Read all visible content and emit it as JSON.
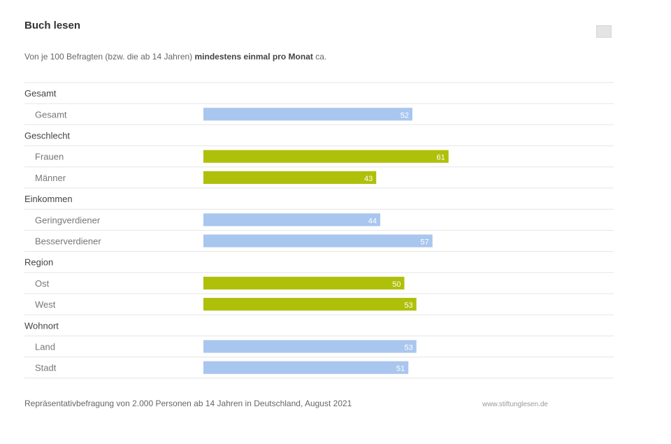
{
  "header": {
    "title": "Buch lesen",
    "subtitle_pre": "Von je 100 Befragten (bzw. die ab 14 Jahren) ",
    "subtitle_bold": "mindestens einmal pro Monat",
    "subtitle_post": " ca."
  },
  "footer": {
    "source": "Repräsentativbefragung von 2.000 Personen ab 14 Jahren in Deutschland, August 2021",
    "brand": "www.stiftunglesen.de"
  },
  "colors": {
    "blue": "#a9c6ef",
    "green": "#afc00a",
    "rule": "#e6e6e6"
  },
  "chart_data": {
    "type": "bar",
    "orientation": "horizontal",
    "xlim": [
      0,
      100
    ],
    "title": "Buch lesen",
    "groups": [
      {
        "label": "Gesamt",
        "rows": [
          {
            "label": "Gesamt",
            "value": 52,
            "color": "blue"
          }
        ]
      },
      {
        "label": "Geschlecht",
        "rows": [
          {
            "label": "Frauen",
            "value": 61,
            "color": "green"
          },
          {
            "label": "Männer",
            "value": 43,
            "color": "green"
          }
        ]
      },
      {
        "label": "Einkommen",
        "rows": [
          {
            "label": "Geringverdiener",
            "value": 44,
            "color": "blue"
          },
          {
            "label": "Besserverdiener",
            "value": 57,
            "color": "blue"
          }
        ]
      },
      {
        "label": "Region",
        "rows": [
          {
            "label": "Ost",
            "value": 50,
            "color": "green"
          },
          {
            "label": "West",
            "value": 53,
            "color": "green"
          }
        ]
      },
      {
        "label": "Wohnort",
        "rows": [
          {
            "label": "Land",
            "value": 53,
            "color": "blue"
          },
          {
            "label": "Stadt",
            "value": 51,
            "color": "blue"
          }
        ]
      }
    ]
  }
}
